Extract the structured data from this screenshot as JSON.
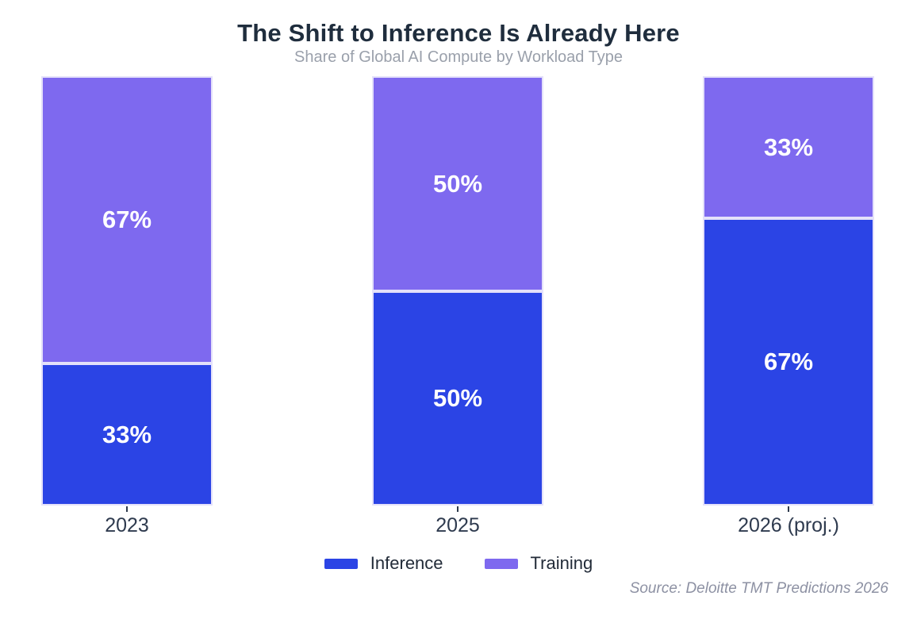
{
  "title": "The Shift to Inference Is Already Here",
  "subtitle": "Share of Global AI Compute by Workload Type",
  "source": "Source: Deloitte TMT Predictions 2026",
  "colors": {
    "inference": "#2b44e5",
    "training": "#7e69ef",
    "title_text": "#1f2d3d",
    "subtitle_text": "#9aa0ab",
    "axis_text": "#2e3a4e",
    "source_text": "#8d91a3",
    "segment_border": "#e4e1fa",
    "background": "#ffffff"
  },
  "legend": [
    {
      "label": "Inference",
      "color": "#2b44e5"
    },
    {
      "label": "Training",
      "color": "#7e69ef"
    }
  ],
  "chart_data": {
    "type": "bar",
    "stacked": true,
    "orientation": "vertical",
    "title": "The Shift to Inference Is Already Here",
    "subtitle": "Share of Global AI Compute by Workload Type",
    "xlabel": "",
    "ylabel": "",
    "ylim": [
      0,
      100
    ],
    "unit": "%",
    "grid": false,
    "legend_position": "bottom-center",
    "categories": [
      "2023",
      "2025",
      "2026 (proj.)"
    ],
    "series": [
      {
        "name": "Inference",
        "color": "#2b44e5",
        "values": [
          33,
          50,
          67
        ],
        "labels": [
          "33%",
          "50%",
          "67%"
        ]
      },
      {
        "name": "Training",
        "color": "#7e69ef",
        "values": [
          67,
          50,
          33
        ],
        "labels": [
          "67%",
          "50%",
          "33%"
        ]
      }
    ],
    "annotation_source": "Source: Deloitte TMT Predictions 2026"
  }
}
